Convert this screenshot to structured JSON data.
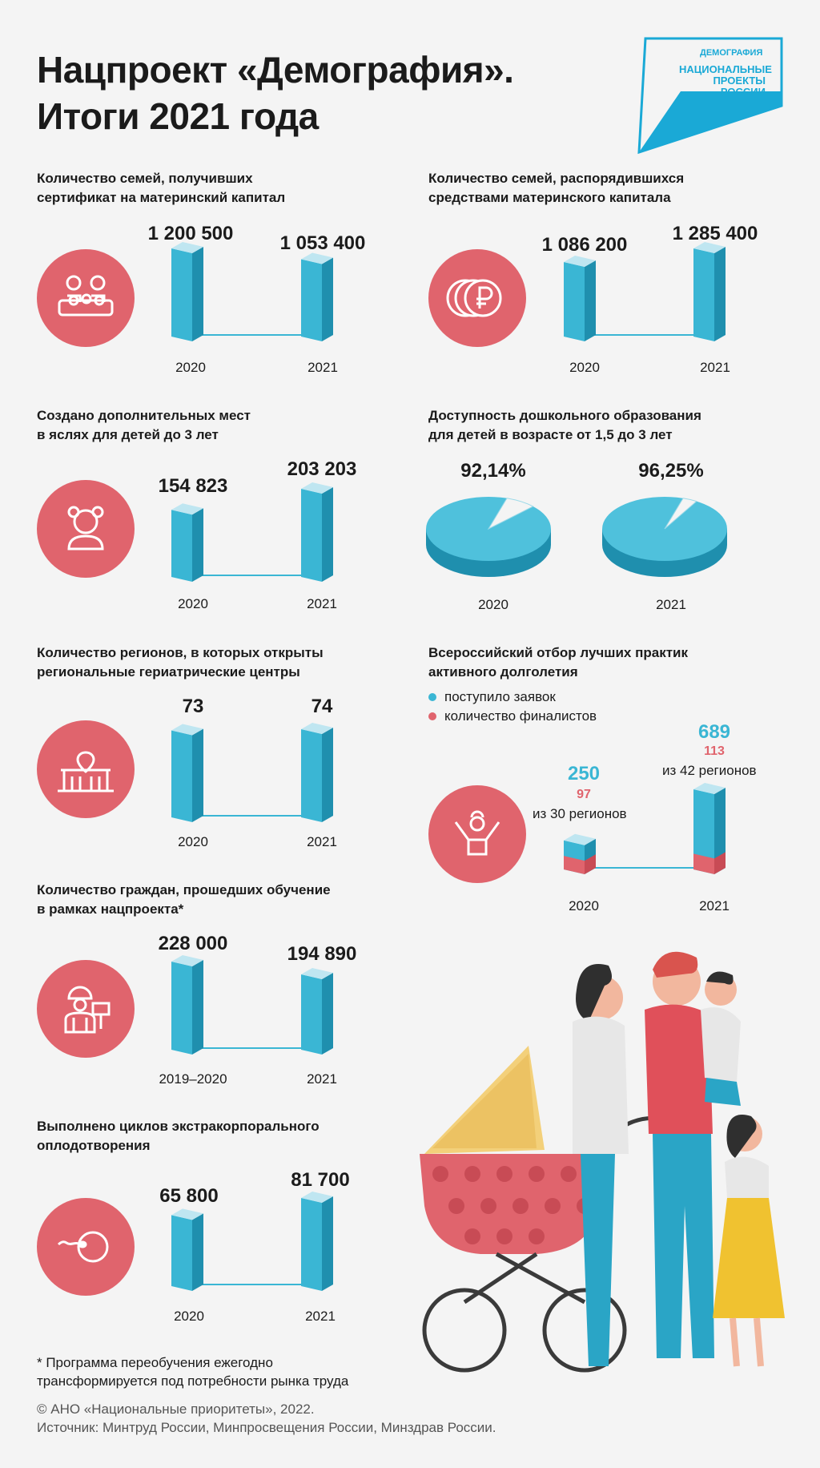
{
  "title": {
    "line1": "Нацпроект «Демография».",
    "line2": "Итоги 2021 года"
  },
  "logo": {
    "top": "ДЕМОГРАФИЯ",
    "line1": "НАЦИОНАЛЬНЫЕ",
    "line2": "ПРОЕКТЫ",
    "line3": "РОССИИ"
  },
  "colors": {
    "accent_red": "#e0646d",
    "bar_cyan": "#3ab6d4",
    "bar_dark": "#1f8fae",
    "logo_blue": "#1aa9d6"
  },
  "icons": [
    "family-icon",
    "ruble-coins-icon",
    "child-icon",
    "building-pin-icon",
    "raised-hands-person-icon",
    "worker-sign-icon",
    "cell-sperm-icon"
  ],
  "chart_data": [
    {
      "type": "bar",
      "title": "Количество семей, получивших сертификат на материнский капитал",
      "categories": [
        "2020",
        "2021"
      ],
      "values": [
        1200500,
        1053400
      ],
      "value_labels": [
        "1 200 500",
        "1 053 400"
      ]
    },
    {
      "type": "bar",
      "title": "Количество семей, распорядившихся средствами материнского капитала",
      "categories": [
        "2020",
        "2021"
      ],
      "values": [
        1086200,
        1285400
      ],
      "value_labels": [
        "1 086 200",
        "1 285 400"
      ]
    },
    {
      "type": "bar",
      "title": "Создано дополнительных мест в яслях для детей до 3 лет",
      "categories": [
        "2020",
        "2021"
      ],
      "values": [
        154823,
        203203
      ],
      "value_labels": [
        "154 823",
        "203 203"
      ]
    },
    {
      "type": "pie",
      "title": "Доступность дошкольного образования для детей в возрасте от 1,5 до 3 лет",
      "categories": [
        "2020",
        "2021"
      ],
      "values": [
        92.14,
        96.25
      ],
      "value_labels": [
        "92,14%",
        "96,25%"
      ]
    },
    {
      "type": "bar",
      "title": "Количество регионов, в которых открыты региональные гериатрические центры",
      "categories": [
        "2020",
        "2021"
      ],
      "values": [
        73,
        74
      ],
      "value_labels": [
        "73",
        "74"
      ]
    },
    {
      "type": "bar",
      "title": "Всероссийский отбор лучших практик активного долголетия",
      "categories": [
        "2020",
        "2021"
      ],
      "series": [
        {
          "name": "поступило заявок",
          "values": [
            250,
            689
          ]
        },
        {
          "name": "количество финалистов",
          "values": [
            97,
            113
          ]
        }
      ],
      "value_labels": [
        "250",
        "689"
      ],
      "finalist_labels": [
        "97",
        "113"
      ],
      "region_notes": [
        "из 30 регионов",
        "из 42 регионов"
      ]
    },
    {
      "type": "bar",
      "title": "Количество граждан, прошедших обучение в рамках нацпроекта*",
      "categories": [
        "2019–2020",
        "2021"
      ],
      "values": [
        228000,
        194890
      ],
      "value_labels": [
        "228 000",
        "194 890"
      ]
    },
    {
      "type": "bar",
      "title": "Выполнено циклов экстракорпорального оплодотворения",
      "categories": [
        "2020",
        "2021"
      ],
      "values": [
        65800,
        81700
      ],
      "value_labels": [
        "65 800",
        "81 700"
      ]
    }
  ],
  "sections": {
    "matcap": {
      "title1": "Количество семей, получивших",
      "title2": "сертификат на материнский капитал"
    },
    "spent": {
      "title1": "Количество семей, распорядившихся",
      "title2": "средствами материнского капитала"
    },
    "nursery": {
      "title1": "Создано дополнительных мест",
      "title2": "в яслях для детей до 3 лет"
    },
    "preschool": {
      "title1": "Доступность дошкольного образования",
      "title2": "для детей в возрасте от 1,5 до 3 лет"
    },
    "geriatric": {
      "title1": "Количество регионов, в которых открыты",
      "title2": "региональные гериатрические центры"
    },
    "longevity": {
      "title1": "Всероссийский отбор лучших практик",
      "title2": "активного долголетия",
      "legend1": "поступило заявок",
      "legend2": "количество финалистов"
    },
    "training": {
      "title1": "Количество граждан, прошедших обучение",
      "title2": "в рамках нацпроекта*"
    },
    "ivf": {
      "title1": "Выполнено циклов экстракорпорального",
      "title2": "оплодотворения"
    }
  },
  "footnote": {
    "line1": "* Программа переобучения ежегодно",
    "line2": "трансформируется под потребности рынка труда"
  },
  "credits": {
    "line1": "© АНО «Национальные приоритеты», 2022.",
    "line2": "Источник: Минтруд России, Минпросвещения России, Минздрав России."
  }
}
